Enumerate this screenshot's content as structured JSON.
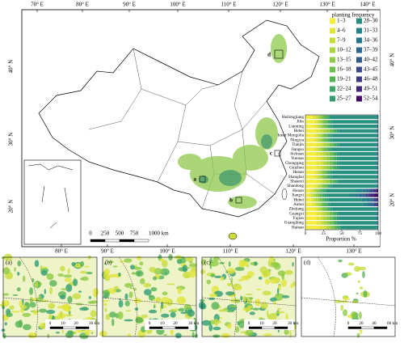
{
  "map": {
    "lon_ticks_top": [
      "70° E",
      "80° E",
      "90° E",
      "100° E",
      "110° E",
      "120° E",
      "130° E",
      "140° E"
    ],
    "lon_ticks_bottom": [
      "80° E",
      "90° E",
      "100° E",
      "110° E",
      "120° E",
      "130° E"
    ],
    "lat_ticks": [
      "20° N",
      "30° N",
      "40° N"
    ],
    "box_labels": [
      "a",
      "b",
      "c",
      "d"
    ],
    "scale_bar": [
      "0",
      "250",
      "500",
      "750",
      "1000 km"
    ]
  },
  "insets": [
    {
      "label": "(a)",
      "scale": [
        "0",
        "10",
        "20",
        "30 km"
      ]
    },
    {
      "label": "(b)",
      "scale": [
        "0",
        "10",
        "20",
        "30 km"
      ]
    },
    {
      "label": "(c)",
      "scale": [
        "0",
        "10",
        "20",
        "30 km"
      ]
    },
    {
      "label": "(d)",
      "scale": [
        "0",
        "20",
        "40",
        "60 km"
      ]
    }
  ],
  "chart_data": {
    "type": "bar",
    "orientation": "horizontal",
    "stacked": true,
    "legend_title": "planting frequency",
    "xlabel": "Proportion %",
    "xlim": [
      0,
      100
    ],
    "xticks": [
      0,
      25,
      50,
      75,
      100
    ],
    "categories": [
      "Heilongjiang",
      "Jilin",
      "Liaoning",
      "Hebei",
      "Inner Mongolia",
      "Ningxia",
      "Tianjin",
      "Jiangsu",
      "Sichuan",
      "Yunnan",
      "Chongqing",
      "Guizhou",
      "Henan",
      "Shanghai",
      "Shaanxi",
      "Shandong",
      "Hunan",
      "Jiangxi",
      "Hubei",
      "Anhui",
      "Zhejiang",
      "Guangxi",
      "Fujian",
      "Guangdong",
      "Hainan"
    ],
    "series": [
      {
        "name": "1–3",
        "color": "#f7ec3b",
        "values": [
          10,
          12,
          12,
          15,
          12,
          12,
          15,
          12,
          15,
          15,
          15,
          15,
          12,
          12,
          15,
          12,
          6,
          5,
          8,
          9,
          12,
          15,
          15,
          15,
          20
        ]
      },
      {
        "name": "4–6",
        "color": "#e1e43a",
        "values": [
          4,
          4,
          4,
          6,
          4,
          4,
          6,
          4,
          6,
          6,
          6,
          6,
          4,
          4,
          6,
          4,
          3,
          3,
          3,
          4,
          4,
          6,
          6,
          6,
          6
        ]
      },
      {
        "name": "7–9",
        "color": "#c8dc3c",
        "values": [
          3,
          3,
          3,
          4,
          3,
          3,
          4,
          3,
          4,
          4,
          4,
          4,
          3,
          3,
          4,
          3,
          3,
          3,
          3,
          3,
          3,
          4,
          4,
          4,
          4
        ]
      },
      {
        "name": "10–12",
        "color": "#abd43f",
        "values": [
          3,
          3,
          3,
          4,
          3,
          3,
          4,
          3,
          4,
          4,
          4,
          4,
          3,
          3,
          4,
          3,
          3,
          3,
          3,
          3,
          3,
          4,
          4,
          4,
          4
        ]
      },
      {
        "name": "13–15",
        "color": "#8ecb45",
        "values": [
          3,
          3,
          3,
          4,
          3,
          3,
          4,
          3,
          4,
          4,
          4,
          4,
          3,
          3,
          4,
          3,
          3,
          3,
          3,
          3,
          3,
          4,
          4,
          4,
          4
        ]
      },
      {
        "name": "16–18",
        "color": "#6fbe4c",
        "values": [
          3,
          3,
          3,
          4,
          3,
          3,
          4,
          3,
          4,
          4,
          4,
          4,
          3,
          3,
          4,
          3,
          3,
          3,
          3,
          3,
          3,
          4,
          4,
          4,
          3
        ]
      },
      {
        "name": "19–21",
        "color": "#55b356",
        "values": [
          3,
          3,
          3,
          3,
          3,
          3,
          3,
          3,
          3,
          3,
          3,
          3,
          3,
          3,
          3,
          3,
          3,
          3,
          3,
          3,
          3,
          3,
          3,
          3,
          3
        ]
      },
      {
        "name": "22–24",
        "color": "#3fa866",
        "values": [
          3,
          3,
          3,
          3,
          3,
          3,
          3,
          3,
          3,
          3,
          3,
          3,
          3,
          3,
          3,
          3,
          3,
          3,
          3,
          3,
          3,
          3,
          3,
          3,
          3
        ]
      },
      {
        "name": "25–27",
        "color": "#2f9c74",
        "values": [
          3,
          3,
          3,
          3,
          3,
          3,
          3,
          3,
          3,
          3,
          3,
          3,
          3,
          3,
          3,
          3,
          3,
          3,
          3,
          3,
          3,
          3,
          3,
          3,
          3
        ]
      },
      {
        "name": "28–30",
        "color": "#27907f",
        "values": [
          62,
          60,
          60,
          50,
          60,
          60,
          50,
          60,
          50,
          50,
          50,
          50,
          60,
          60,
          50,
          60,
          40,
          30,
          45,
          44,
          60,
          50,
          50,
          50,
          48
        ]
      },
      {
        "name": "31–33",
        "color": "#238387",
        "values": [
          2,
          2,
          2,
          2,
          2,
          2,
          2,
          2,
          2,
          2,
          2,
          2,
          2,
          2,
          2,
          2,
          8,
          8,
          7,
          7,
          2,
          2,
          2,
          2,
          1
        ]
      },
      {
        "name": "34–36",
        "color": "#25768b",
        "values": [
          1,
          1,
          1,
          1,
          1,
          1,
          1,
          1,
          1,
          1,
          1,
          1,
          1,
          1,
          1,
          1,
          5,
          6,
          5,
          5,
          1,
          1,
          1,
          1,
          1
        ]
      },
      {
        "name": "37–39",
        "color": "#2a688c",
        "values": [
          0,
          0,
          0,
          1,
          0,
          0,
          1,
          0,
          1,
          1,
          1,
          1,
          0,
          0,
          1,
          0,
          4,
          5,
          3,
          3,
          0,
          1,
          1,
          1,
          0
        ]
      },
      {
        "name": "40–42",
        "color": "#30598c",
        "values": [
          0,
          0,
          0,
          0,
          0,
          0,
          0,
          0,
          0,
          0,
          0,
          0,
          0,
          0,
          0,
          0,
          3,
          4,
          2,
          2,
          0,
          0,
          0,
          0,
          0
        ]
      },
      {
        "name": "43–45",
        "color": "#37498a",
        "values": [
          0,
          0,
          0,
          0,
          0,
          0,
          0,
          0,
          0,
          0,
          0,
          0,
          0,
          0,
          0,
          0,
          3,
          4,
          2,
          2,
          0,
          0,
          0,
          0,
          0
        ]
      },
      {
        "name": "46–48",
        "color": "#3d3884",
        "values": [
          0,
          0,
          0,
          0,
          0,
          0,
          0,
          0,
          0,
          0,
          0,
          0,
          0,
          0,
          0,
          0,
          3,
          4,
          2,
          2,
          0,
          0,
          0,
          0,
          0
        ]
      },
      {
        "name": "49–51",
        "color": "#42267a",
        "values": [
          0,
          0,
          0,
          0,
          0,
          0,
          0,
          0,
          0,
          0,
          0,
          0,
          0,
          0,
          0,
          0,
          2,
          5,
          1,
          1,
          0,
          0,
          0,
          0,
          0
        ]
      },
      {
        "name": "52–54",
        "color": "#44096a",
        "values": [
          0,
          0,
          0,
          0,
          0,
          0,
          0,
          0,
          0,
          0,
          0,
          0,
          0,
          0,
          0,
          0,
          2,
          5,
          1,
          0,
          0,
          0,
          0,
          0,
          0
        ]
      }
    ]
  }
}
